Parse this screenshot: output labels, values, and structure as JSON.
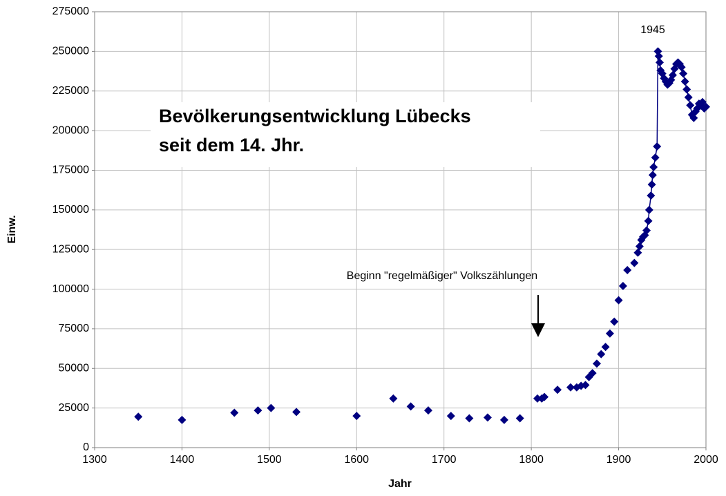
{
  "chart_data": {
    "type": "scatter",
    "title": [
      "Bevölkerungsentwicklung Lübecks",
      "seit dem 14. Jhr."
    ],
    "x_label": "Jahr",
    "y_label": "Einw.",
    "annotations": [
      "1945",
      "Beginn \"regelmäßiger\" Volkszählungen"
    ],
    "series": [
      {
        "name": "Einw.",
        "color": "#000080",
        "x": [
          1350,
          1400,
          1460,
          1487,
          1502,
          1531,
          1600,
          1642,
          1662,
          1682,
          1708,
          1729,
          1750,
          1769,
          1787,
          1807,
          1812,
          1815,
          1830,
          1845,
          1852,
          1857,
          1862,
          1866,
          1870,
          1875,
          1880,
          1885,
          1890,
          1895,
          1900,
          1905,
          1910,
          1918,
          1922,
          1924,
          1926,
          1928,
          1930,
          1932,
          1934,
          1935,
          1937,
          1938,
          1939,
          1940,
          1942,
          1944,
          1945,
          1946,
          1947,
          1948,
          1950,
          1952,
          1954,
          1956,
          1958,
          1960,
          1962,
          1964,
          1966,
          1968,
          1970,
          1972,
          1974,
          1976,
          1978,
          1980,
          1982,
          1984,
          1986,
          1988,
          1990,
          1992,
          1994,
          1996,
          1998,
          2000
        ],
        "values": [
          19500,
          17500,
          22000,
          23500,
          25000,
          22500,
          20000,
          31000,
          26000,
          23500,
          20000,
          18500,
          19000,
          17500,
          18500,
          31000,
          31000,
          32000,
          36500,
          38000,
          38000,
          39000,
          39500,
          44500,
          47000,
          53000,
          59000,
          63500,
          72000,
          79500,
          93000,
          102000,
          112000,
          116500,
          123000,
          127000,
          131000,
          133000,
          134000,
          137000,
          143000,
          150000,
          159000,
          166000,
          172000,
          177000,
          183000,
          190000,
          250000,
          247000,
          243000,
          238000,
          236000,
          233000,
          231000,
          229000,
          230000,
          232000,
          235000,
          239000,
          242000,
          243000,
          242000,
          240000,
          236000,
          231000,
          226000,
          221000,
          216000,
          210000,
          208000,
          212000,
          214000,
          217000,
          216000,
          218000,
          214000,
          215000
        ]
      }
    ],
    "xlim": [
      1300,
      2000
    ],
    "xticks": [
      1300,
      1400,
      1500,
      1600,
      1700,
      1800,
      1900,
      2000
    ],
    "ylim": [
      0,
      275000
    ],
    "yticks": [
      0,
      25000,
      50000,
      75000,
      100000,
      125000,
      150000,
      175000,
      200000,
      225000,
      250000,
      275000
    ],
    "grid": true
  }
}
